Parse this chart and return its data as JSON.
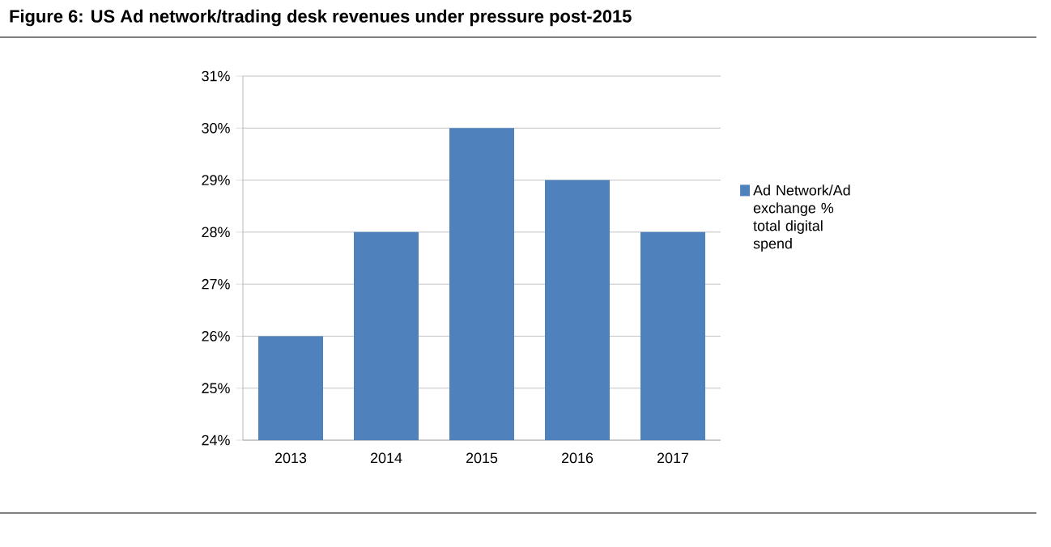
{
  "chart_data": {
    "type": "bar",
    "title": "Figure 6:  US Ad network/trading desk revenues under pressure post-2015",
    "categories": [
      "2013",
      "2014",
      "2015",
      "2016",
      "2017"
    ],
    "series": [
      {
        "name": "Ad Network/Ad exchange % total digital spend",
        "color": "#4f81bd",
        "values": [
          26,
          28,
          30,
          29,
          28
        ]
      }
    ],
    "ylim": [
      24,
      31
    ],
    "yticks": [
      {
        "value": 24,
        "label": "24%"
      },
      {
        "value": 25,
        "label": "25%"
      },
      {
        "value": 26,
        "label": "26%"
      },
      {
        "value": 27,
        "label": "27%"
      },
      {
        "value": 28,
        "label": "28%"
      },
      {
        "value": 29,
        "label": "29%"
      },
      {
        "value": 30,
        "label": "30%"
      },
      {
        "value": 31,
        "label": "31%"
      }
    ],
    "grid": "y",
    "legend": "right"
  }
}
